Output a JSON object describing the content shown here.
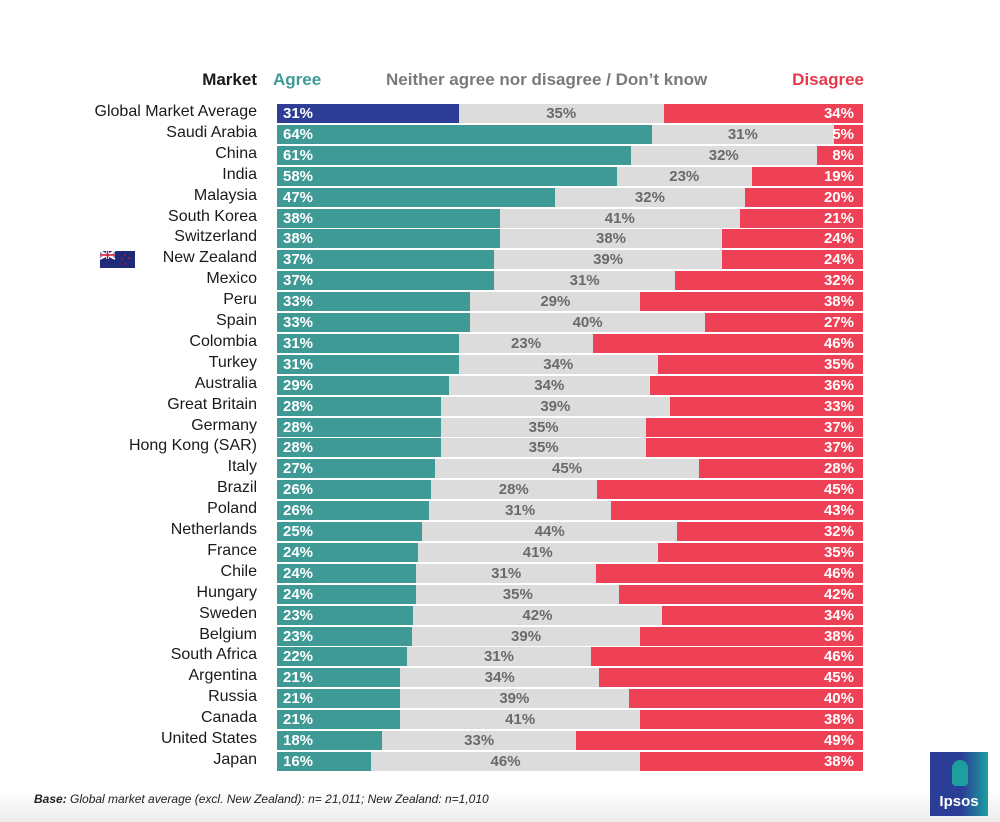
{
  "headers": {
    "market": "Market",
    "agree": "Agree",
    "neither": "Neither agree nor disagree / Don’t know",
    "disagree": "Disagree"
  },
  "colors": {
    "agree": "#3f9a96",
    "global_agree": "#2e3e96",
    "neither": "#dcdcdc",
    "disagree": "#ef4156"
  },
  "footnote": {
    "bold": "Base:",
    "text": " Global market average (excl. New Zealand): n= 21,011; New Zealand: n=1,010"
  },
  "logo": {
    "text": "Ipsos"
  },
  "chart_data": {
    "type": "bar",
    "subtype": "stacked-horizontal-100",
    "series": [
      {
        "name": "Agree"
      },
      {
        "name": "Neither agree nor disagree / Don’t know"
      },
      {
        "name": "Disagree"
      }
    ],
    "markets": [
      {
        "name": "Global Market Average",
        "agree": 31,
        "neither": 35,
        "disagree": 34,
        "highlight": "global"
      },
      {
        "name": "Saudi Arabia",
        "agree": 64,
        "neither": 31,
        "disagree": 5
      },
      {
        "name": "China",
        "agree": 61,
        "neither": 32,
        "disagree": 8
      },
      {
        "name": "India",
        "agree": 58,
        "neither": 23,
        "disagree": 19
      },
      {
        "name": "Malaysia",
        "agree": 47,
        "neither": 32,
        "disagree": 20
      },
      {
        "name": "South Korea",
        "agree": 38,
        "neither": 41,
        "disagree": 21
      },
      {
        "name": "Switzerland",
        "agree": 38,
        "neither": 38,
        "disagree": 24
      },
      {
        "name": "New Zealand",
        "agree": 37,
        "neither": 39,
        "disagree": 24,
        "flag": "new-zealand-flag"
      },
      {
        "name": "Mexico",
        "agree": 37,
        "neither": 31,
        "disagree": 32
      },
      {
        "name": "Peru",
        "agree": 33,
        "neither": 29,
        "disagree": 38
      },
      {
        "name": "Spain",
        "agree": 33,
        "neither": 40,
        "disagree": 27
      },
      {
        "name": "Colombia",
        "agree": 31,
        "neither": 23,
        "disagree": 46
      },
      {
        "name": "Turkey",
        "agree": 31,
        "neither": 34,
        "disagree": 35
      },
      {
        "name": "Australia",
        "agree": 29,
        "neither": 34,
        "disagree": 36
      },
      {
        "name": "Great Britain",
        "agree": 28,
        "neither": 39,
        "disagree": 33
      },
      {
        "name": "Germany",
        "agree": 28,
        "neither": 35,
        "disagree": 37
      },
      {
        "name": "Hong Kong (SAR)",
        "agree": 28,
        "neither": 35,
        "disagree": 37
      },
      {
        "name": "Italy",
        "agree": 27,
        "neither": 45,
        "disagree": 28
      },
      {
        "name": "Brazil",
        "agree": 26,
        "neither": 28,
        "disagree": 45
      },
      {
        "name": "Poland",
        "agree": 26,
        "neither": 31,
        "disagree": 43
      },
      {
        "name": "Netherlands",
        "agree": 25,
        "neither": 44,
        "disagree": 32
      },
      {
        "name": "France",
        "agree": 24,
        "neither": 41,
        "disagree": 35
      },
      {
        "name": "Chile",
        "agree": 24,
        "neither": 31,
        "disagree": 46
      },
      {
        "name": "Hungary",
        "agree": 24,
        "neither": 35,
        "disagree": 42
      },
      {
        "name": "Sweden",
        "agree": 23,
        "neither": 42,
        "disagree": 34
      },
      {
        "name": "Belgium",
        "agree": 23,
        "neither": 39,
        "disagree": 38
      },
      {
        "name": "South Africa",
        "agree": 22,
        "neither": 31,
        "disagree": 46
      },
      {
        "name": "Argentina",
        "agree": 21,
        "neither": 34,
        "disagree": 45
      },
      {
        "name": "Russia",
        "agree": 21,
        "neither": 39,
        "disagree": 40
      },
      {
        "name": "Canada",
        "agree": 21,
        "neither": 41,
        "disagree": 38
      },
      {
        "name": "United States",
        "agree": 18,
        "neither": 33,
        "disagree": 49
      },
      {
        "name": "Japan",
        "agree": 16,
        "neither": 46,
        "disagree": 38
      }
    ],
    "value_suffix": "%",
    "xlim": [
      0,
      100
    ],
    "legend": "top"
  }
}
